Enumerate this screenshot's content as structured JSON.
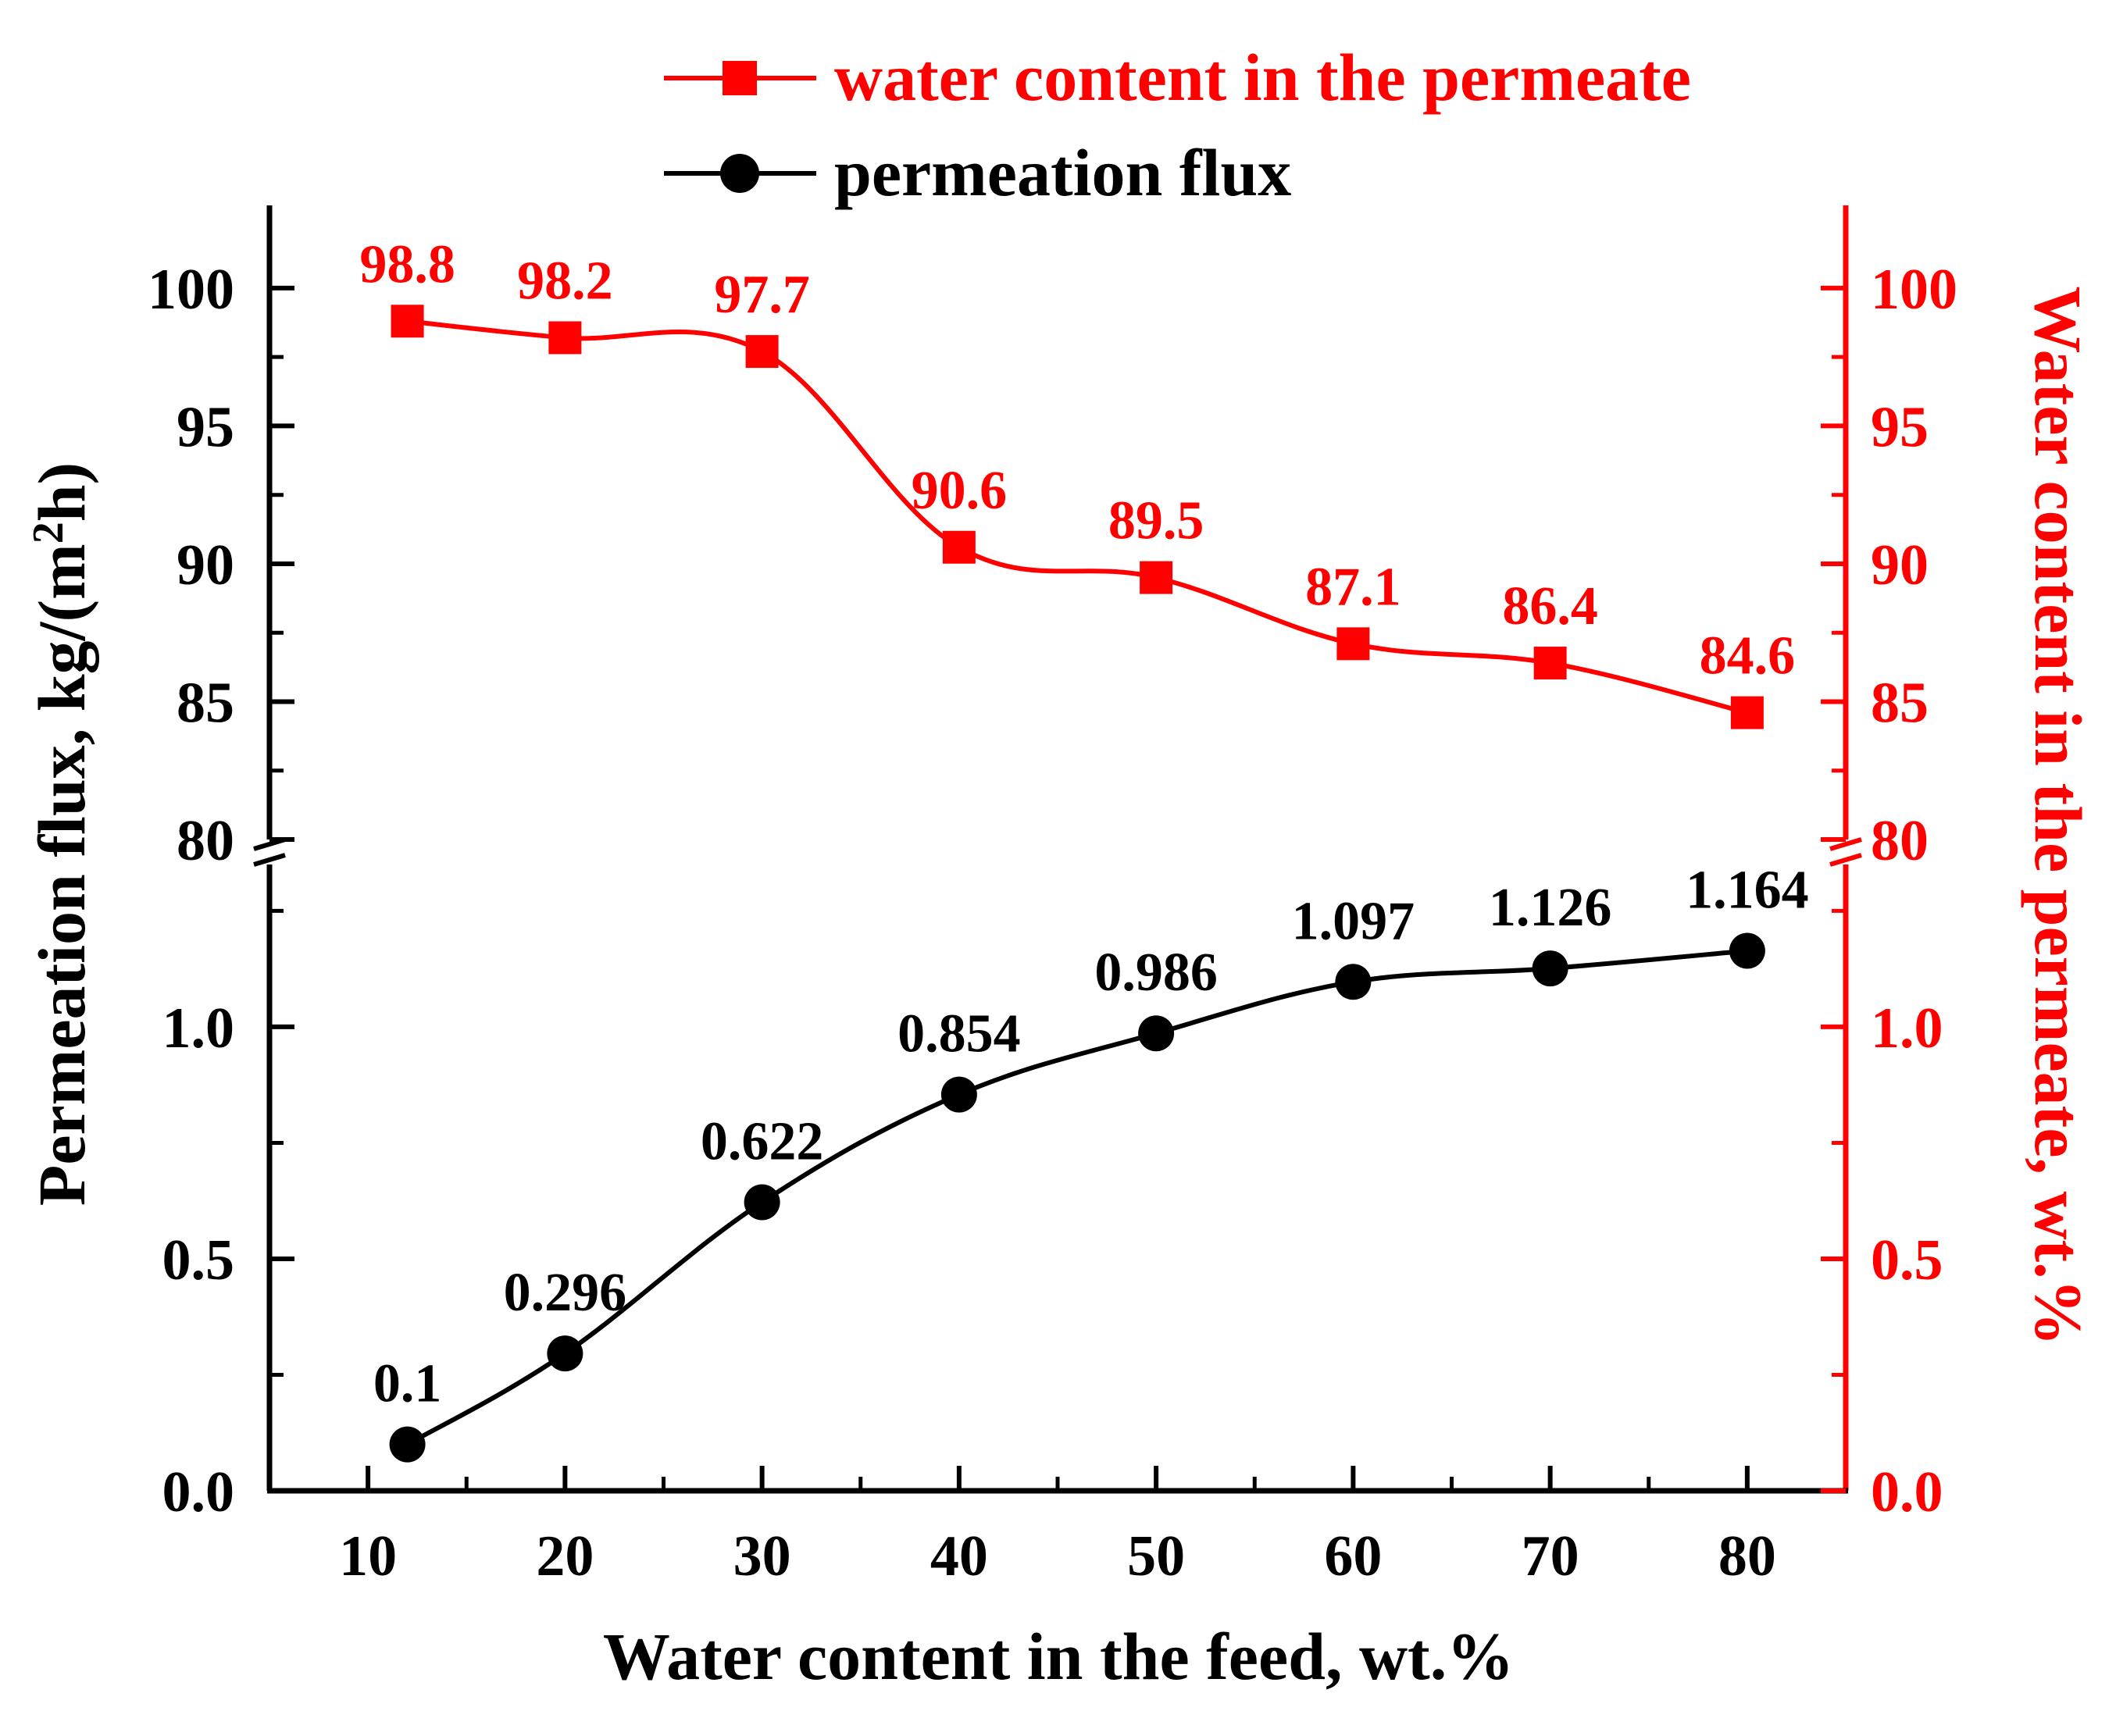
{
  "chart_data": {
    "type": "line",
    "title": "",
    "xlabel": "Water content in the feed, wt.%",
    "ylabel": "Permeation flux, kg/(m2h)",
    "ylabel_parts": {
      "before": "Permeation flux, kg/(m",
      "superscript": "2",
      "after": "h)"
    },
    "ylabel_right": "Water content in the permeate, wt.%",
    "x_ticks": [
      "10",
      "20",
      "30",
      "40",
      "50",
      "60",
      "70",
      "80"
    ],
    "x_tick_values": [
      10,
      20,
      30,
      40,
      50,
      60,
      70,
      80
    ],
    "xlim": [
      5,
      85
    ],
    "axis_break": true,
    "upper_ylim": [
      80,
      103
    ],
    "lower_ylim": [
      0,
      1.35
    ],
    "upper_ticks": [
      {
        "value": 80,
        "label": "80"
      },
      {
        "value": 85,
        "label": "85"
      },
      {
        "value": 90,
        "label": "90"
      },
      {
        "value": 95,
        "label": "95"
      },
      {
        "value": 100,
        "label": "100"
      }
    ],
    "lower_ticks": [
      {
        "value": 0.0,
        "label": "0.0"
      },
      {
        "value": 0.5,
        "label": "0.5"
      },
      {
        "value": 1.0,
        "label": "1.0"
      }
    ],
    "legend": {
      "position": "top-right",
      "entries": [
        {
          "series": "water content in the permeate",
          "label": "water content in the permeate",
          "color": "#ff0000",
          "marker": "square"
        },
        {
          "series": "permeation flux",
          "label": "permeation flux",
          "color": "#000000",
          "marker": "circle"
        }
      ]
    },
    "series": [
      {
        "name": "water content in the permeate",
        "axis": "upper",
        "color": "#ff0000",
        "marker": "square",
        "x": [
          12,
          20,
          30,
          40,
          50,
          60,
          70,
          80
        ],
        "values": [
          98.8,
          98.2,
          97.7,
          90.6,
          89.5,
          87.1,
          86.4,
          84.6
        ],
        "labels": [
          "98.8",
          "98.2",
          "97.7",
          "90.6",
          "89.5",
          "87.1",
          "86.4",
          "84.6"
        ]
      },
      {
        "name": "permeation flux",
        "axis": "lower",
        "color": "#000000",
        "marker": "circle",
        "x": [
          12,
          20,
          30,
          40,
          50,
          60,
          70,
          80
        ],
        "values": [
          0.1,
          0.296,
          0.622,
          0.854,
          0.986,
          1.097,
          1.126,
          1.164
        ],
        "labels": [
          "0.1",
          "0.296",
          "0.622",
          "0.854",
          "0.986",
          "1.097",
          "1.126",
          "1.164"
        ]
      }
    ]
  }
}
